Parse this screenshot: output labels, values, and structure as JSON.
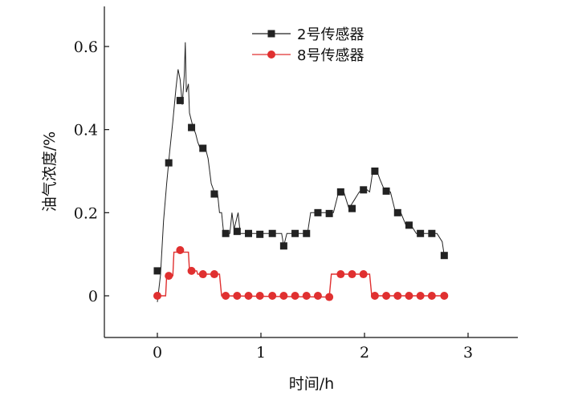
{
  "chart_data": {
    "type": "line",
    "xlabel": "时间/h",
    "ylabel": "油气浓度/%",
    "xlim": [
      -0.5,
      3.5
    ],
    "ylim": [
      -0.1,
      0.7
    ],
    "xticks": [
      0,
      1,
      2,
      3
    ],
    "xtick_labels": [
      "0",
      "1",
      "2",
      "3"
    ],
    "yticks": [
      0,
      0.2,
      0.4,
      0.6
    ],
    "ytick_labels": [
      "0",
      "0.2",
      "0.4",
      "0.6"
    ],
    "grid": false,
    "legend_position": "top-right",
    "series": [
      {
        "name": "2号传感器",
        "color": "#222222",
        "marker": "square",
        "points": [
          [
            0.0,
            0.06
          ],
          [
            0.11,
            0.32
          ],
          [
            0.22,
            0.47
          ],
          [
            0.33,
            0.405
          ],
          [
            0.44,
            0.355
          ],
          [
            0.55,
            0.245
          ],
          [
            0.66,
            0.15
          ],
          [
            0.77,
            0.155
          ],
          [
            0.88,
            0.15
          ],
          [
            0.99,
            0.148
          ],
          [
            1.11,
            0.15
          ],
          [
            1.22,
            0.12
          ],
          [
            1.33,
            0.15
          ],
          [
            1.44,
            0.15
          ],
          [
            1.55,
            0.2
          ],
          [
            1.66,
            0.198
          ],
          [
            1.77,
            0.25
          ],
          [
            1.88,
            0.21
          ],
          [
            1.99,
            0.255
          ],
          [
            2.1,
            0.3
          ],
          [
            2.21,
            0.252
          ],
          [
            2.32,
            0.2
          ],
          [
            2.43,
            0.17
          ],
          [
            2.54,
            0.15
          ],
          [
            2.65,
            0.15
          ],
          [
            2.77,
            0.097
          ]
        ],
        "trace": [
          [
            0.0,
            -0.015
          ],
          [
            0.03,
            0.05
          ],
          [
            0.06,
            0.18
          ],
          [
            0.09,
            0.27
          ],
          [
            0.12,
            0.35
          ],
          [
            0.15,
            0.42
          ],
          [
            0.18,
            0.5
          ],
          [
            0.2,
            0.545
          ],
          [
            0.22,
            0.52
          ],
          [
            0.24,
            0.46
          ],
          [
            0.26,
            0.53
          ],
          [
            0.27,
            0.61
          ],
          [
            0.28,
            0.49
          ],
          [
            0.3,
            0.51
          ],
          [
            0.31,
            0.44
          ],
          [
            0.34,
            0.41
          ],
          [
            0.37,
            0.39
          ],
          [
            0.39,
            0.37
          ],
          [
            0.42,
            0.35
          ],
          [
            0.46,
            0.36
          ],
          [
            0.49,
            0.33
          ],
          [
            0.52,
            0.27
          ],
          [
            0.55,
            0.25
          ],
          [
            0.58,
            0.25
          ],
          [
            0.6,
            0.2
          ],
          [
            0.62,
            0.2
          ],
          [
            0.64,
            0.15
          ],
          [
            0.7,
            0.15
          ],
          [
            0.72,
            0.2
          ],
          [
            0.74,
            0.16
          ],
          [
            0.78,
            0.2
          ],
          [
            0.8,
            0.15
          ],
          [
            0.9,
            0.15
          ],
          [
            0.95,
            0.15
          ],
          [
            1.0,
            0.15
          ],
          [
            1.05,
            0.15
          ],
          [
            1.12,
            0.15
          ],
          [
            1.2,
            0.15
          ],
          [
            1.22,
            0.12
          ],
          [
            1.25,
            0.15
          ],
          [
            1.3,
            0.15
          ],
          [
            1.35,
            0.15
          ],
          [
            1.45,
            0.15
          ],
          [
            1.48,
            0.2
          ],
          [
            1.55,
            0.2
          ],
          [
            1.62,
            0.2
          ],
          [
            1.7,
            0.2
          ],
          [
            1.75,
            0.25
          ],
          [
            1.8,
            0.25
          ],
          [
            1.85,
            0.21
          ],
          [
            1.9,
            0.23
          ],
          [
            1.95,
            0.25
          ],
          [
            2.0,
            0.26
          ],
          [
            2.05,
            0.25
          ],
          [
            2.08,
            0.3
          ],
          [
            2.12,
            0.3
          ],
          [
            2.15,
            0.28
          ],
          [
            2.2,
            0.25
          ],
          [
            2.25,
            0.25
          ],
          [
            2.3,
            0.2
          ],
          [
            2.35,
            0.2
          ],
          [
            2.4,
            0.17
          ],
          [
            2.45,
            0.17
          ],
          [
            2.5,
            0.15
          ],
          [
            2.6,
            0.15
          ],
          [
            2.7,
            0.15
          ],
          [
            2.75,
            0.13
          ],
          [
            2.77,
            0.097
          ]
        ]
      },
      {
        "name": "8号传感器",
        "color": "#e03030",
        "marker": "circle",
        "points": [
          [
            0.0,
            0.0
          ],
          [
            0.11,
            0.048
          ],
          [
            0.22,
            0.11
          ],
          [
            0.33,
            0.06
          ],
          [
            0.44,
            0.052
          ],
          [
            0.55,
            0.052
          ],
          [
            0.66,
            0.0
          ],
          [
            0.77,
            0.0
          ],
          [
            0.88,
            0.0
          ],
          [
            0.99,
            0.0
          ],
          [
            1.11,
            0.0
          ],
          [
            1.22,
            0.0
          ],
          [
            1.33,
            0.0
          ],
          [
            1.44,
            0.0
          ],
          [
            1.55,
            0.0
          ],
          [
            1.66,
            -0.003
          ],
          [
            1.77,
            0.052
          ],
          [
            1.88,
            0.052
          ],
          [
            1.99,
            0.052
          ],
          [
            2.1,
            0.0
          ],
          [
            2.21,
            0.0
          ],
          [
            2.32,
            0.0
          ],
          [
            2.43,
            0.0
          ],
          [
            2.54,
            0.0
          ],
          [
            2.65,
            0.0
          ],
          [
            2.77,
            0.0
          ]
        ],
        "trace": [
          [
            0.0,
            0.0
          ],
          [
            0.08,
            0.0
          ],
          [
            0.09,
            0.048
          ],
          [
            0.15,
            0.048
          ],
          [
            0.16,
            0.105
          ],
          [
            0.3,
            0.105
          ],
          [
            0.31,
            0.06
          ],
          [
            0.38,
            0.06
          ],
          [
            0.39,
            0.052
          ],
          [
            0.6,
            0.052
          ],
          [
            0.62,
            0.0
          ],
          [
            1.66,
            -0.003
          ],
          [
            1.68,
            0.052
          ],
          [
            2.05,
            0.052
          ],
          [
            2.07,
            0.0
          ],
          [
            2.77,
            0.0
          ]
        ]
      }
    ]
  }
}
